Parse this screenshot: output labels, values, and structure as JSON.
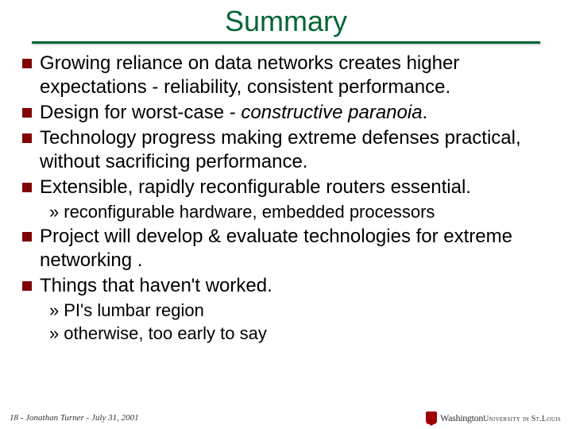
{
  "slide": {
    "title": "Summary",
    "title_color": "#006633",
    "underline_color": "#006633",
    "bullet_marker_color": "#800000",
    "text_color": "#000000",
    "background_color": "#ffffff",
    "title_fontsize": 36,
    "body_fontsize": 24,
    "sub_fontsize": 22,
    "bullets": [
      {
        "level": 1,
        "text": "Growing reliance on data networks creates higher expectations - reliability, consistent performance."
      },
      {
        "level": 1,
        "text_parts": [
          "Design for worst-case - ",
          "constructive paranoia",
          "."
        ],
        "italic_index": 1
      },
      {
        "level": 1,
        "text": "Technology progress making extreme defenses practical, without sacrificing performance."
      },
      {
        "level": 1,
        "text": "Extensible, rapidly reconfigurable routers essential."
      },
      {
        "level": 2,
        "text": "reconfigurable hardware, embedded processors"
      },
      {
        "level": 1,
        "text": "Project will develop & evaluate technologies for extreme networking ."
      },
      {
        "level": 1,
        "text": "Things that haven't worked."
      },
      {
        "level": 2,
        "text": "PI's lumbar region"
      },
      {
        "level": 2,
        "text": "otherwise, too early to say"
      }
    ]
  },
  "footer": {
    "page_number": "18",
    "author": "Jonathan Turner",
    "date": "July 31, 2001",
    "separator": " - "
  },
  "logo": {
    "institution_line1": "Washington",
    "institution_line2": "University in St.Louis",
    "shield_color": "#a00000"
  }
}
